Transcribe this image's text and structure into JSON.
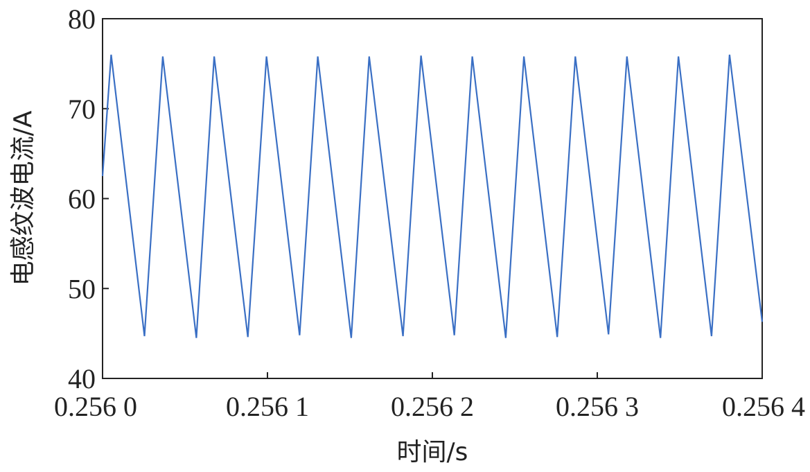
{
  "chart_data": {
    "type": "line",
    "title": "",
    "xlabel": "时间/s",
    "ylabel": "电感纹波电流/A",
    "xlim": [
      0.256,
      0.2564
    ],
    "ylim": [
      40,
      80
    ],
    "x_ticks": [
      0.256,
      0.2561,
      0.2562,
      0.2563,
      0.2564
    ],
    "x_tick_labels": [
      "0.256 0",
      "0.256 1",
      "0.256 2",
      "0.256 3",
      "0.256 4"
    ],
    "y_ticks": [
      40,
      50,
      60,
      70,
      80
    ],
    "y_tick_labels": [
      "40",
      "50",
      "60",
      "70",
      "80"
    ],
    "grid": false,
    "line_color": "#3a6fc4",
    "series": [
      {
        "x": [
          0.256,
          0.2560052,
          0.2560254,
          0.2560365,
          0.2560569,
          0.2560677,
          0.2560881,
          0.2560994,
          0.2561195,
          0.2561305,
          0.2561508,
          0.2561617,
          0.2561822,
          0.2561931,
          0.2562133,
          0.2562242,
          0.2562445,
          0.2562555,
          0.2562757,
          0.2562867,
          0.2563068,
          0.256318,
          0.2563383,
          0.2563492,
          0.2563693,
          0.2563802,
          0.2564
        ],
        "y": [
          62.5,
          76,
          44.7,
          75.8,
          44.5,
          75.8,
          44.6,
          75.8,
          44.8,
          75.8,
          44.5,
          75.8,
          44.7,
          75.9,
          44.8,
          75.8,
          44.5,
          75.8,
          44.6,
          75.8,
          44.9,
          75.8,
          44.5,
          75.8,
          44.7,
          76,
          46.3
        ]
      }
    ]
  }
}
